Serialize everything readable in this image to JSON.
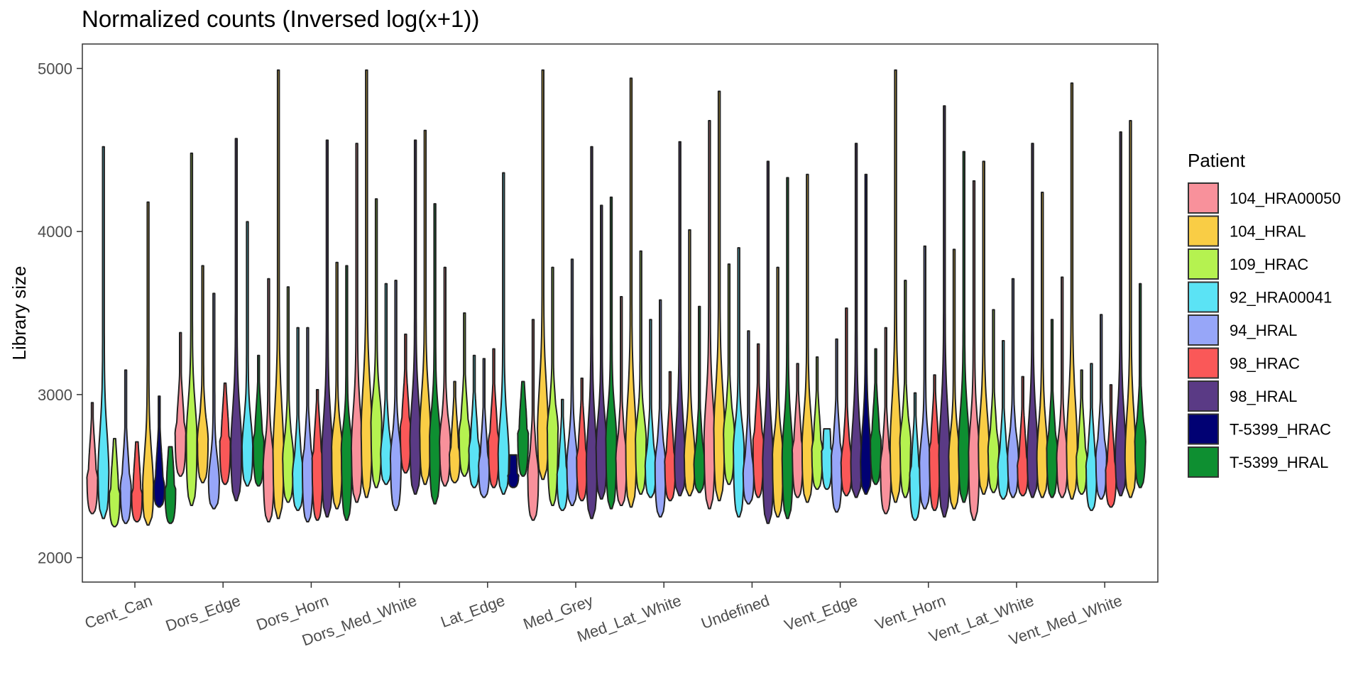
{
  "chart_data": {
    "type": "violin",
    "title": "Normalized counts (Inversed log(x+1))",
    "xlabel": "",
    "ylabel": "Library size",
    "ylim": [
      1850,
      5150
    ],
    "yticks": [
      2000,
      3000,
      4000,
      5000
    ],
    "grid": false,
    "legend": {
      "title": "Patient",
      "placement": "right",
      "entries": [
        {
          "name": "104_HRA00050",
          "color": "#F8919B"
        },
        {
          "name": "104_HRAL",
          "color": "#F9CD45"
        },
        {
          "name": "109_HRAC",
          "color": "#B5F250"
        },
        {
          "name": "92_HRA00041",
          "color": "#5BE3F5"
        },
        {
          "name": "94_HRAL",
          "color": "#97A6F8"
        },
        {
          "name": "98_HRAC",
          "color": "#FA5858"
        },
        {
          "name": "98_HRAL",
          "color": "#5A3A85"
        },
        {
          "name": "T-5399_HRAC",
          "color": "#010173"
        },
        {
          "name": "T-5399_HRAL",
          "color": "#0E8F31"
        }
      ]
    },
    "categories": [
      "Cent_Can",
      "Dors_Edge",
      "Dors_Horn",
      "Dors_Med_White",
      "Lat_Edge",
      "Med_Grey",
      "Med_Lat_White",
      "Undefined",
      "Vent_Edge",
      "Vent_Horn",
      "Vent_Lat_White",
      "Vent_Med_White"
    ],
    "series_note": "",
    "violins": [
      {
        "category": "Cent_Can",
        "patient": "104_HRA00050",
        "min": 2270,
        "max": 2950,
        "mode": 2480
      },
      {
        "category": "Cent_Can",
        "patient": "92_HRA00041",
        "min": 2240,
        "max": 4520,
        "mode": 2500
      },
      {
        "category": "Cent_Can",
        "patient": "109_HRAC",
        "min": 2190,
        "max": 2730,
        "mode": 2380
      },
      {
        "category": "Cent_Can",
        "patient": "94_HRAL",
        "min": 2210,
        "max": 3150,
        "mode": 2420
      },
      {
        "category": "Cent_Can",
        "patient": "98_HRAC",
        "min": 2220,
        "max": 2710,
        "mode": 2380
      },
      {
        "category": "Cent_Can",
        "patient": "104_HRAL",
        "min": 2200,
        "max": 4180,
        "mode": 2400
      },
      {
        "category": "Cent_Can",
        "patient": "T-5399_HRAC",
        "min": 2310,
        "max": 2990,
        "mode": 2420
      },
      {
        "category": "Cent_Can",
        "patient": "T-5399_HRAL",
        "min": 2210,
        "max": 2680,
        "mode": 2410
      },
      {
        "category": "Dors_Edge",
        "patient": "104_HRA00050",
        "min": 2500,
        "max": 3380,
        "mode": 2750
      },
      {
        "category": "Dors_Edge",
        "patient": "109_HRAC",
        "min": 2320,
        "max": 4480,
        "mode": 2700
      },
      {
        "category": "Dors_Edge",
        "patient": "104_HRAL",
        "min": 2460,
        "max": 3790,
        "mode": 2700
      },
      {
        "category": "Dors_Edge",
        "patient": "94_HRAL",
        "min": 2300,
        "max": 3620,
        "mode": 2450
      },
      {
        "category": "Dors_Edge",
        "patient": "98_HRAC",
        "min": 2450,
        "max": 3070,
        "mode": 2700
      },
      {
        "category": "Dors_Edge",
        "patient": "98_HRAL",
        "min": 2350,
        "max": 4570,
        "mode": 2650
      },
      {
        "category": "Dors_Edge",
        "patient": "92_HRA00041",
        "min": 2440,
        "max": 4060,
        "mode": 2650
      },
      {
        "category": "Dors_Edge",
        "patient": "T-5399_HRAL",
        "min": 2440,
        "max": 3240,
        "mode": 2700
      },
      {
        "category": "Dors_Horn",
        "patient": "104_HRA00050",
        "min": 2220,
        "max": 3710,
        "mode": 2550
      },
      {
        "category": "Dors_Horn",
        "patient": "104_HRAL",
        "min": 2240,
        "max": 4990,
        "mode": 2600
      },
      {
        "category": "Dors_Horn",
        "patient": "109_HRAC",
        "min": 2340,
        "max": 3660,
        "mode": 2600
      },
      {
        "category": "Dors_Horn",
        "patient": "92_HRA00041",
        "min": 2290,
        "max": 3410,
        "mode": 2500
      },
      {
        "category": "Dors_Horn",
        "patient": "94_HRAL",
        "min": 2220,
        "max": 3410,
        "mode": 2550
      },
      {
        "category": "Dors_Horn",
        "patient": "98_HRAC",
        "min": 2230,
        "max": 3030,
        "mode": 2600
      },
      {
        "category": "Dors_Horn",
        "patient": "98_HRAL",
        "min": 2250,
        "max": 4560,
        "mode": 2600
      },
      {
        "category": "Dors_Horn",
        "patient": "104_HRAL",
        "min": 2300,
        "max": 3810,
        "mode": 2650
      },
      {
        "category": "Dors_Horn",
        "patient": "T-5399_HRAL",
        "min": 2230,
        "max": 3790,
        "mode": 2650
      },
      {
        "category": "Dors_Med_White",
        "patient": "104_HRA00050",
        "min": 2340,
        "max": 4540,
        "mode": 2650
      },
      {
        "category": "Dors_Med_White",
        "patient": "104_HRAL",
        "min": 2370,
        "max": 4990,
        "mode": 2750
      },
      {
        "category": "Dors_Med_White",
        "patient": "109_HRAC",
        "min": 2430,
        "max": 4200,
        "mode": 2800
      },
      {
        "category": "Dors_Med_White",
        "patient": "92_HRA00041",
        "min": 2450,
        "max": 3680,
        "mode": 2620
      },
      {
        "category": "Dors_Med_White",
        "patient": "94_HRAL",
        "min": 2290,
        "max": 3700,
        "mode": 2600
      },
      {
        "category": "Dors_Med_White",
        "patient": "98_HRAC",
        "min": 2520,
        "max": 3370,
        "mode": 2780
      },
      {
        "category": "Dors_Med_White",
        "patient": "98_HRAL",
        "min": 2390,
        "max": 4560,
        "mode": 2700
      },
      {
        "category": "Dors_Med_White",
        "patient": "104_HRAL",
        "min": 2450,
        "max": 4620,
        "mode": 2750
      },
      {
        "category": "Dors_Med_White",
        "patient": "T-5399_HRAL",
        "min": 2330,
        "max": 4170,
        "mode": 2700
      },
      {
        "category": "Lat_Edge",
        "patient": "104_HRA00050",
        "min": 2440,
        "max": 3780,
        "mode": 2700
      },
      {
        "category": "Lat_Edge",
        "patient": "104_HRAL",
        "min": 2460,
        "max": 3080,
        "mode": 2620
      },
      {
        "category": "Lat_Edge",
        "patient": "109_HRAC",
        "min": 2500,
        "max": 3500,
        "mode": 2750
      },
      {
        "category": "Lat_Edge",
        "patient": "92_HRA00041",
        "min": 2430,
        "max": 3240,
        "mode": 2650
      },
      {
        "category": "Lat_Edge",
        "patient": "94_HRAL",
        "min": 2370,
        "max": 3220,
        "mode": 2550
      },
      {
        "category": "Lat_Edge",
        "patient": "98_HRAC",
        "min": 2430,
        "max": 3280,
        "mode": 2700
      },
      {
        "category": "Lat_Edge",
        "patient": "92_HRA00041",
        "min": 2390,
        "max": 4360,
        "mode": 2600
      },
      {
        "category": "Lat_Edge",
        "patient": "T-5399_HRAC",
        "min": 2430,
        "max": 2630,
        "mode": 2500
      },
      {
        "category": "Lat_Edge",
        "patient": "T-5399_HRAL",
        "min": 2500,
        "max": 3080,
        "mode": 2750
      },
      {
        "category": "Med_Grey",
        "patient": "104_HRA00050",
        "min": 2230,
        "max": 3460,
        "mode": 2500
      },
      {
        "category": "Med_Grey",
        "patient": "104_HRAL",
        "min": 2480,
        "max": 4990,
        "mode": 2750
      },
      {
        "category": "Med_Grey",
        "patient": "109_HRAC",
        "min": 2320,
        "max": 3780,
        "mode": 2780
      },
      {
        "category": "Med_Grey",
        "patient": "92_HRA00041",
        "min": 2290,
        "max": 2970,
        "mode": 2500
      },
      {
        "category": "Med_Grey",
        "patient": "94_HRAL",
        "min": 2320,
        "max": 3830,
        "mode": 2550
      },
      {
        "category": "Med_Grey",
        "patient": "98_HRAC",
        "min": 2350,
        "max": 3100,
        "mode": 2600
      },
      {
        "category": "Med_Grey",
        "patient": "98_HRAL",
        "min": 2240,
        "max": 4520,
        "mode": 2550
      },
      {
        "category": "Med_Grey",
        "patient": "98_HRAL",
        "min": 2360,
        "max": 4160,
        "mode": 2650
      },
      {
        "category": "Med_Grey",
        "patient": "T-5399_HRAL",
        "min": 2300,
        "max": 4210,
        "mode": 2700
      },
      {
        "category": "Med_Lat_White",
        "patient": "104_HRA00050",
        "min": 2320,
        "max": 3600,
        "mode": 2600
      },
      {
        "category": "Med_Lat_White",
        "patient": "104_HRAL",
        "min": 2310,
        "max": 4940,
        "mode": 2650
      },
      {
        "category": "Med_Lat_White",
        "patient": "109_HRAC",
        "min": 2390,
        "max": 3880,
        "mode": 2700
      },
      {
        "category": "Med_Lat_White",
        "patient": "92_HRA00041",
        "min": 2370,
        "max": 3460,
        "mode": 2550
      },
      {
        "category": "Med_Lat_White",
        "patient": "94_HRAL",
        "min": 2250,
        "max": 3580,
        "mode": 2550
      },
      {
        "category": "Med_Lat_White",
        "patient": "98_HRAC",
        "min": 2350,
        "max": 3140,
        "mode": 2580
      },
      {
        "category": "Med_Lat_White",
        "patient": "98_HRAL",
        "min": 2380,
        "max": 4550,
        "mode": 2560
      },
      {
        "category": "Med_Lat_White",
        "patient": "104_HRAL",
        "min": 2380,
        "max": 4010,
        "mode": 2600
      },
      {
        "category": "Med_Lat_White",
        "patient": "T-5399_HRAL",
        "min": 2400,
        "max": 3540,
        "mode": 2560
      },
      {
        "category": "Undefined",
        "patient": "104_HRA00050",
        "min": 2300,
        "max": 4680,
        "mode": 2700
      },
      {
        "category": "Undefined",
        "patient": "104_HRAL",
        "min": 2350,
        "max": 4860,
        "mode": 2750
      },
      {
        "category": "Undefined",
        "patient": "109_HRAC",
        "min": 2450,
        "max": 3800,
        "mode": 2750
      },
      {
        "category": "Undefined",
        "patient": "92_HRA00041",
        "min": 2250,
        "max": 3900,
        "mode": 2650
      },
      {
        "category": "Undefined",
        "patient": "94_HRAL",
        "min": 2330,
        "max": 3390,
        "mode": 2500
      },
      {
        "category": "Undefined",
        "patient": "98_HRAC",
        "min": 2370,
        "max": 3310,
        "mode": 2700
      },
      {
        "category": "Undefined",
        "patient": "98_HRAL",
        "min": 2210,
        "max": 4430,
        "mode": 2550
      },
      {
        "category": "Undefined",
        "patient": "104_HRAL",
        "min": 2250,
        "max": 3780,
        "mode": 2600
      },
      {
        "category": "Undefined",
        "patient": "T-5399_HRAL",
        "min": 2240,
        "max": 4330,
        "mode": 2600
      },
      {
        "category": "Vent_Edge",
        "patient": "104_HRA00050",
        "min": 2370,
        "max": 3190,
        "mode": 2650
      },
      {
        "category": "Vent_Edge",
        "patient": "104_HRAL",
        "min": 2340,
        "max": 4350,
        "mode": 2650
      },
      {
        "category": "Vent_Edge",
        "patient": "109_HRAC",
        "min": 2420,
        "max": 3230,
        "mode": 2650
      },
      {
        "category": "Vent_Edge",
        "patient": "92_HRA00041",
        "min": 2420,
        "max": 2790,
        "mode": 2650
      },
      {
        "category": "Vent_Edge",
        "patient": "94_HRAL",
        "min": 2280,
        "max": 3340,
        "mode": 2600
      },
      {
        "category": "Vent_Edge",
        "patient": "98_HRAC",
        "min": 2380,
        "max": 3530,
        "mode": 2560
      },
      {
        "category": "Vent_Edge",
        "patient": "98_HRAL",
        "min": 2370,
        "max": 4540,
        "mode": 2550
      },
      {
        "category": "Vent_Edge",
        "patient": "T-5399_HRAC",
        "min": 2390,
        "max": 4350,
        "mode": 2550
      },
      {
        "category": "Vent_Edge",
        "patient": "T-5399_HRAL",
        "min": 2450,
        "max": 3280,
        "mode": 2700
      },
      {
        "category": "Vent_Horn",
        "patient": "104_HRA00050",
        "min": 2270,
        "max": 3410,
        "mode": 2550
      },
      {
        "category": "Vent_Horn",
        "patient": "104_HRAL",
        "min": 2340,
        "max": 4990,
        "mode": 2650
      },
      {
        "category": "Vent_Horn",
        "patient": "109_HRAC",
        "min": 2370,
        "max": 3700,
        "mode": 2700
      },
      {
        "category": "Vent_Horn",
        "patient": "92_HRA00041",
        "min": 2230,
        "max": 3010,
        "mode": 2500
      },
      {
        "category": "Vent_Horn",
        "patient": "94_HRAL",
        "min": 2300,
        "max": 3910,
        "mode": 2550
      },
      {
        "category": "Vent_Horn",
        "patient": "98_HRAC",
        "min": 2290,
        "max": 3120,
        "mode": 2650
      },
      {
        "category": "Vent_Horn",
        "patient": "98_HRAL",
        "min": 2250,
        "max": 4770,
        "mode": 2600
      },
      {
        "category": "Vent_Horn",
        "patient": "104_HRAL",
        "min": 2300,
        "max": 3890,
        "mode": 2600
      },
      {
        "category": "Vent_Horn",
        "patient": "T-5399_HRAL",
        "min": 2340,
        "max": 4490,
        "mode": 2650
      },
      {
        "category": "Vent_Lat_White",
        "patient": "104_HRA00050",
        "min": 2230,
        "max": 4310,
        "mode": 2600
      },
      {
        "category": "Vent_Lat_White",
        "patient": "104_HRAL",
        "min": 2390,
        "max": 4430,
        "mode": 2650
      },
      {
        "category": "Vent_Lat_White",
        "patient": "109_HRAC",
        "min": 2400,
        "max": 3520,
        "mode": 2650
      },
      {
        "category": "Vent_Lat_White",
        "patient": "92_HRA00041",
        "min": 2360,
        "max": 3330,
        "mode": 2550
      },
      {
        "category": "Vent_Lat_White",
        "patient": "94_HRAL",
        "min": 2370,
        "max": 3710,
        "mode": 2600
      },
      {
        "category": "Vent_Lat_White",
        "patient": "98_HRAC",
        "min": 2380,
        "max": 3110,
        "mode": 2550
      },
      {
        "category": "Vent_Lat_White",
        "patient": "98_HRAL",
        "min": 2370,
        "max": 4540,
        "mode": 2600
      },
      {
        "category": "Vent_Lat_White",
        "patient": "104_HRAL",
        "min": 2370,
        "max": 4240,
        "mode": 2600
      },
      {
        "category": "Vent_Lat_White",
        "patient": "T-5399_HRAL",
        "min": 2370,
        "max": 3460,
        "mode": 2650
      },
      {
        "category": "Vent_Med_White",
        "patient": "104_HRA00050",
        "min": 2370,
        "max": 3720,
        "mode": 2600
      },
      {
        "category": "Vent_Med_White",
        "patient": "104_HRAL",
        "min": 2360,
        "max": 4910,
        "mode": 2650
      },
      {
        "category": "Vent_Med_White",
        "patient": "109_HRAC",
        "min": 2390,
        "max": 3150,
        "mode": 2600
      },
      {
        "category": "Vent_Med_White",
        "patient": "92_HRA00041",
        "min": 2290,
        "max": 3190,
        "mode": 2550
      },
      {
        "category": "Vent_Med_White",
        "patient": "94_HRAL",
        "min": 2360,
        "max": 3490,
        "mode": 2600
      },
      {
        "category": "Vent_Med_White",
        "patient": "98_HRAC",
        "min": 2310,
        "max": 3060,
        "mode": 2520
      },
      {
        "category": "Vent_Med_White",
        "patient": "98_HRAL",
        "min": 2380,
        "max": 4610,
        "mode": 2600
      },
      {
        "category": "Vent_Med_White",
        "patient": "104_HRAL",
        "min": 2370,
        "max": 4680,
        "mode": 2600
      },
      {
        "category": "Vent_Med_White",
        "patient": "T-5399_HRAL",
        "min": 2430,
        "max": 3680,
        "mode": 2700
      }
    ]
  }
}
